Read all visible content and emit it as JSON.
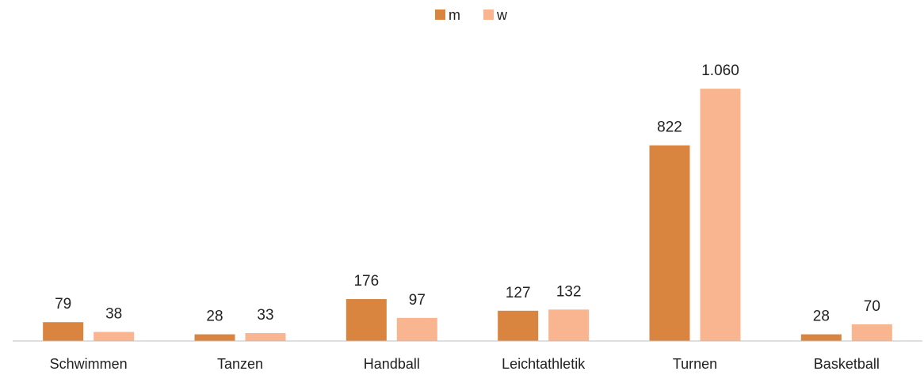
{
  "chart_data": {
    "type": "bar",
    "categories": [
      "Schwimmen",
      "Tanzen",
      "Handball",
      "Leichtathletik",
      "Turnen",
      "Basketball"
    ],
    "series": [
      {
        "name": "m",
        "color": "#d9843f",
        "values": [
          79,
          28,
          176,
          127,
          822,
          28
        ]
      },
      {
        "name": "w",
        "color": "#f8b58f",
        "values": [
          38,
          33,
          97,
          132,
          1060,
          70
        ],
        "value_labels": [
          "38",
          "33",
          "97",
          "132",
          "1.060",
          "70"
        ]
      }
    ],
    "ylim": [
      0,
      1200
    ],
    "grid": false,
    "legend": "top"
  }
}
